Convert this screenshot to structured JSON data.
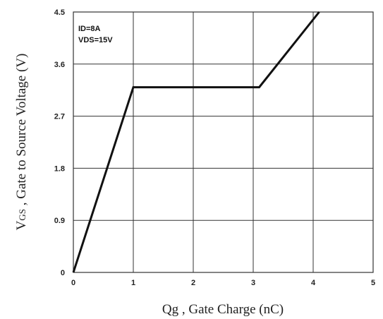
{
  "chart_data": {
    "type": "line",
    "title": "",
    "xlabel": "Qg , Gate Charge (nC)",
    "ylabel_main": "V",
    "ylabel_sub": "GS",
    "ylabel_rest": " , Gate to Source Voltage (V)",
    "xlim": [
      0,
      5
    ],
    "ylim": [
      0,
      4.5
    ],
    "x_ticks": [
      "0",
      "1",
      "2",
      "3",
      "4",
      "5"
    ],
    "y_ticks": [
      "0",
      "0.9",
      "1.8",
      "2.7",
      "3.6",
      "4.5"
    ],
    "grid": true,
    "annotations": [
      "ID=8A",
      "VDS=15V"
    ],
    "series": [
      {
        "x": [
          0,
          1.0,
          3.1,
          4.1
        ],
        "y": [
          0,
          3.2,
          3.2,
          4.5
        ]
      }
    ]
  }
}
